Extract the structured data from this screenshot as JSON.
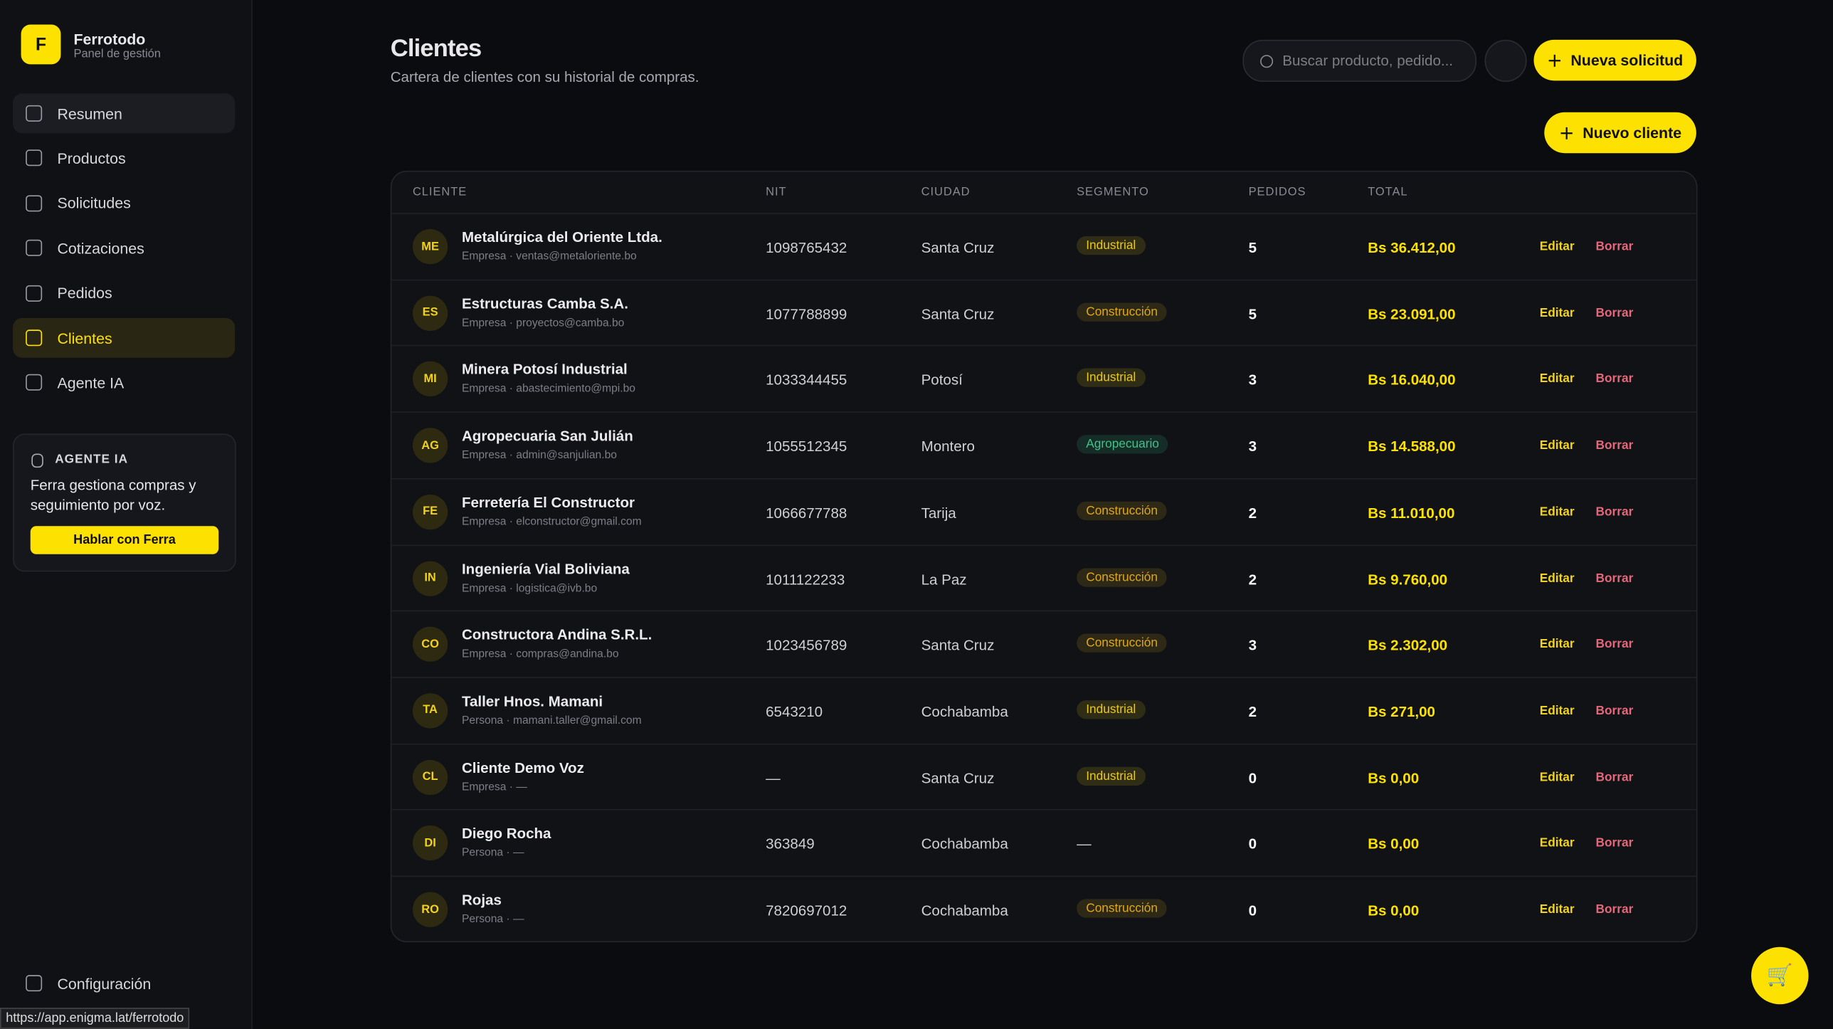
{
  "sidebar": {
    "brand": {
      "logo": "F",
      "name": "Ferrotodo",
      "subtitle": "Panel de gestión"
    },
    "nav": [
      "Resumen",
      "Productos",
      "Solicitudes",
      "Cotizaciones",
      "Pedidos",
      "Clientes",
      "Agente IA"
    ],
    "agent_card": {
      "title": "AGENTE IA",
      "text": "Ferra gestiona compras y seguimiento por voz.",
      "button": "Hablar con Ferra"
    },
    "settings": "Configuración",
    "status_url": "https://app.enigma.lat/ferrotodo"
  },
  "header": {
    "title": "Clientes",
    "subtitle": "Cartera de clientes con su historial de compras.",
    "search_placeholder": "Buscar producto, pedido...",
    "new_request": "Nueva solicitud",
    "new_client": "Nuevo cliente"
  },
  "table": {
    "columns": [
      "CLIENTE",
      "NIT",
      "CIUDAD",
      "SEGMENTO",
      "PEDIDOS",
      "TOTAL"
    ],
    "actions": [
      "Editar",
      "Borrar"
    ],
    "rows": [
      {
        "initials": "ME",
        "name": "Metalúrgica del Oriente Ltda.",
        "meta": "Empresa · ventas@metaloriente.bo",
        "nit": "1098765432",
        "city": "Santa Cruz",
        "segment": "Industrial",
        "segment_color": "#e8c820",
        "orders": 5,
        "total": "Bs 36.412,00"
      },
      {
        "initials": "ES",
        "name": "Estructuras Camba S.A.",
        "meta": "Empresa · proyectos@camba.bo",
        "nit": "1077788899",
        "city": "Santa Cruz",
        "segment": "Construcción",
        "segment_color": "#e0a818",
        "orders": 5,
        "total": "Bs 23.091,00"
      },
      {
        "initials": "MI",
        "name": "Minera Potosí Industrial",
        "meta": "Empresa · abastecimiento@mpi.bo",
        "nit": "1033344455",
        "city": "Potosí",
        "segment": "Industrial",
        "segment_color": "#e8c820",
        "orders": 3,
        "total": "Bs 16.040,00"
      },
      {
        "initials": "AG",
        "name": "Agropecuaria San Julián",
        "meta": "Empresa · admin@sanjulian.bo",
        "nit": "1055512345",
        "city": "Montero",
        "segment": "Agropecuario",
        "segment_color": "#3cc48a",
        "orders": 3,
        "total": "Bs 14.588,00"
      },
      {
        "initials": "FE",
        "name": "Ferretería El Constructor",
        "meta": "Empresa · elconstructor@gmail.com",
        "nit": "1066677788",
        "city": "Tarija",
        "segment": "Construcción",
        "segment_color": "#e0a818",
        "orders": 2,
        "total": "Bs 11.010,00"
      },
      {
        "initials": "IN",
        "name": "Ingeniería Vial Boliviana",
        "meta": "Empresa · logistica@ivb.bo",
        "nit": "1011122233",
        "city": "La Paz",
        "segment": "Construcción",
        "segment_color": "#e0a818",
        "orders": 2,
        "total": "Bs 9.760,00"
      },
      {
        "initials": "CO",
        "name": "Constructora Andina S.R.L.",
        "meta": "Empresa · compras@andina.bo",
        "nit": "1023456789",
        "city": "Santa Cruz",
        "segment": "Construcción",
        "segment_color": "#e0a818",
        "orders": 3,
        "total": "Bs 2.302,00"
      },
      {
        "initials": "TA",
        "name": "Taller Hnos. Mamani",
        "meta": "Persona · mamani.taller@gmail.com",
        "nit": "6543210",
        "city": "Cochabamba",
        "segment": "Industrial",
        "segment_color": "#e8c820",
        "orders": 2,
        "total": "Bs 271,00"
      },
      {
        "initials": "CL",
        "name": "Cliente Demo Voz",
        "meta": "Empresa · —",
        "nit": "—",
        "city": "Santa Cruz",
        "segment": "Industrial",
        "segment_color": "#e8c820",
        "orders": 0,
        "total": "Bs 0,00"
      },
      {
        "initials": "DI",
        "name": "Diego Rocha",
        "meta": "Persona · —",
        "nit": "363849",
        "city": "Cochabamba",
        "segment": "—",
        "orders": 0,
        "total": "Bs 0,00"
      },
      {
        "initials": "RO",
        "name": "Rojas",
        "meta": "Persona · —",
        "nit": "7820697012",
        "city": "Cochabamba",
        "segment": "Construcción",
        "segment_color": "#e0a818",
        "orders": 0,
        "total": "Bs 0,00"
      }
    ]
  }
}
